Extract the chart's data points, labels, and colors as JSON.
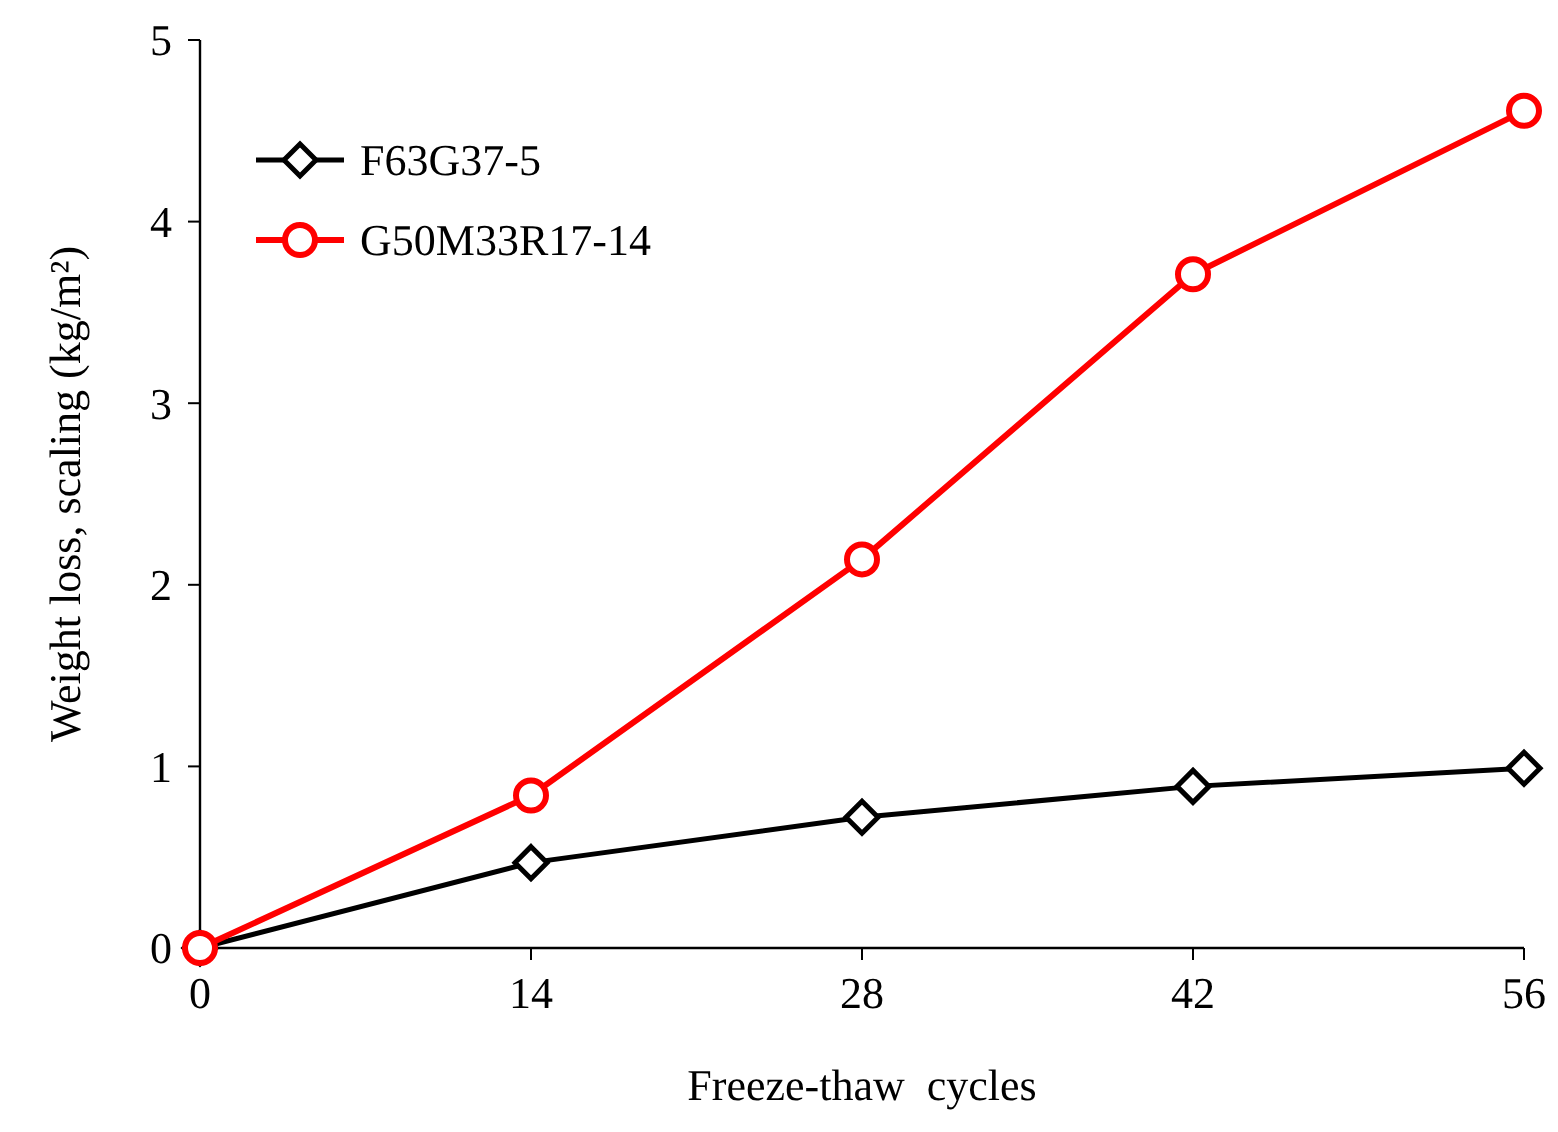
{
  "chart_data": {
    "type": "line",
    "xlabel": "Freeze-thaw  cycles",
    "ylabel": "Weight loss, scaling (kg/m²)",
    "x": [
      0,
      14,
      28,
      42,
      56
    ],
    "xlim": [
      0,
      56
    ],
    "xticks": [
      0,
      14,
      28,
      42,
      56
    ],
    "ylim": [
      0,
      5
    ],
    "yticks": [
      0,
      1,
      2,
      3,
      4,
      5
    ],
    "legend": "top left",
    "grid": false,
    "line_style": "solid",
    "series": [
      {
        "name": "F63G37-5",
        "color": "#000000",
        "marker": "diamond",
        "values": [
          0,
          0.47,
          0.72,
          0.89,
          0.99
        ]
      },
      {
        "name": "G50M33R17-14",
        "color": "#ff0000",
        "marker": "circle",
        "values": [
          0,
          0.84,
          2.14,
          3.71,
          4.61
        ]
      }
    ]
  }
}
